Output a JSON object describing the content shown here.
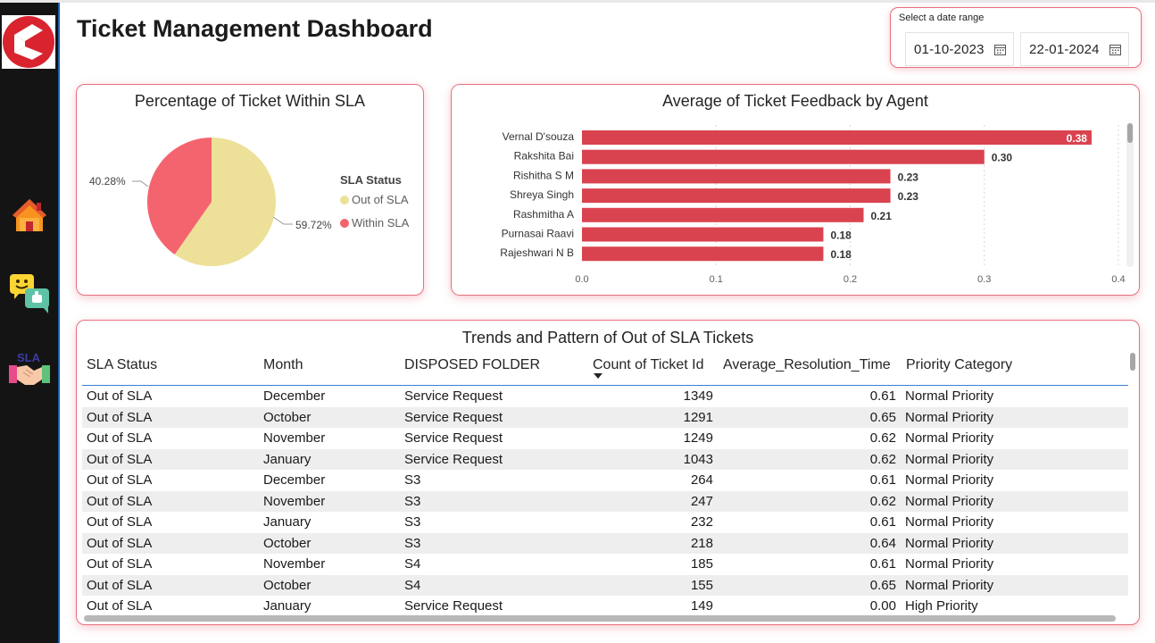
{
  "page": {
    "title": "Ticket Management Dashboard"
  },
  "sidebar": {
    "logo_icon": "brand-logo-icon",
    "items": [
      {
        "icon": "home-icon",
        "name": "home"
      },
      {
        "icon": "feedback-chat-icon",
        "name": "feedback"
      },
      {
        "icon": "sla-handshake-icon",
        "name": "sla",
        "badge_text": "SLA"
      }
    ]
  },
  "date_range": {
    "label": "Select a date range",
    "start": "01-10-2023",
    "end": "22-01-2024",
    "icon": "calendar-icon"
  },
  "colors": {
    "accent_border": "#e7707e",
    "out_of_sla": "#ede098",
    "within_sla": "#f4646f",
    "bar": "#d9434f",
    "table_alt_row": "#eeeeee"
  },
  "sla_card": {
    "title": "Percentage of Ticket Within SLA",
    "legend_title": "SLA Status",
    "legend": [
      "Out of SLA",
      "Within SLA"
    ],
    "labels": {
      "out_of_sla": "59.72%",
      "within_sla": "40.28%"
    }
  },
  "feedback_card": {
    "title": "Average of Ticket Feedback by Agent"
  },
  "trends_table": {
    "title": "Trends and Pattern of Out of SLA Tickets",
    "columns": [
      "SLA Status",
      "Month",
      "DISPOSED FOLDER",
      "Count of Ticket Id",
      "Average_Resolution_Time",
      "Priority Category"
    ],
    "sort_indicator": "sort-descending-icon",
    "rows": [
      [
        "Out of SLA",
        "December",
        "Service Request",
        "1349",
        "0.61",
        "Normal Priority"
      ],
      [
        "Out of SLA",
        "October",
        "Service Request",
        "1291",
        "0.65",
        "Normal Priority"
      ],
      [
        "Out of SLA",
        "November",
        "Service Request",
        "1249",
        "0.62",
        "Normal Priority"
      ],
      [
        "Out of SLA",
        "January",
        "Service Request",
        "1043",
        "0.62",
        "Normal Priority"
      ],
      [
        "Out of SLA",
        "December",
        "S3",
        "264",
        "0.61",
        "Normal Priority"
      ],
      [
        "Out of SLA",
        "November",
        "S3",
        "247",
        "0.62",
        "Normal Priority"
      ],
      [
        "Out of SLA",
        "January",
        "S3",
        "232",
        "0.61",
        "Normal Priority"
      ],
      [
        "Out of SLA",
        "October",
        "S3",
        "218",
        "0.64",
        "Normal Priority"
      ],
      [
        "Out of SLA",
        "November",
        "S4",
        "185",
        "0.61",
        "Normal Priority"
      ],
      [
        "Out of SLA",
        "October",
        "S4",
        "155",
        "0.65",
        "Normal Priority"
      ],
      [
        "Out of SLA",
        "January",
        "Service Request",
        "149",
        "0.00",
        "High Priority"
      ]
    ]
  },
  "chart_data": [
    {
      "type": "pie",
      "title": "Percentage of Ticket Within SLA",
      "legend_title": "SLA Status",
      "legend_position": "right",
      "categories": [
        "Out of SLA",
        "Within SLA"
      ],
      "values": [
        59.72,
        40.28
      ],
      "data_labels": [
        "59.72%",
        "40.28%"
      ]
    },
    {
      "type": "bar",
      "orientation": "horizontal",
      "title": "Average of Ticket Feedback by Agent",
      "categories": [
        "Vernal D'souza",
        "Rakshita Bai",
        "Rishitha S M",
        "Shreya Singh",
        "Rashmitha A",
        "Purnasai Raavi",
        "Rajeshwari N B"
      ],
      "values": [
        0.38,
        0.3,
        0.23,
        0.23,
        0.21,
        0.18,
        0.18
      ],
      "data_labels": [
        "0.38",
        "0.30",
        "0.23",
        "0.23",
        "0.21",
        "0.18",
        "0.18"
      ],
      "xlim": [
        0,
        0.4
      ],
      "xticks": [
        "0.0",
        "0.1",
        "0.2",
        "0.3",
        "0.4"
      ],
      "grid": true
    }
  ]
}
